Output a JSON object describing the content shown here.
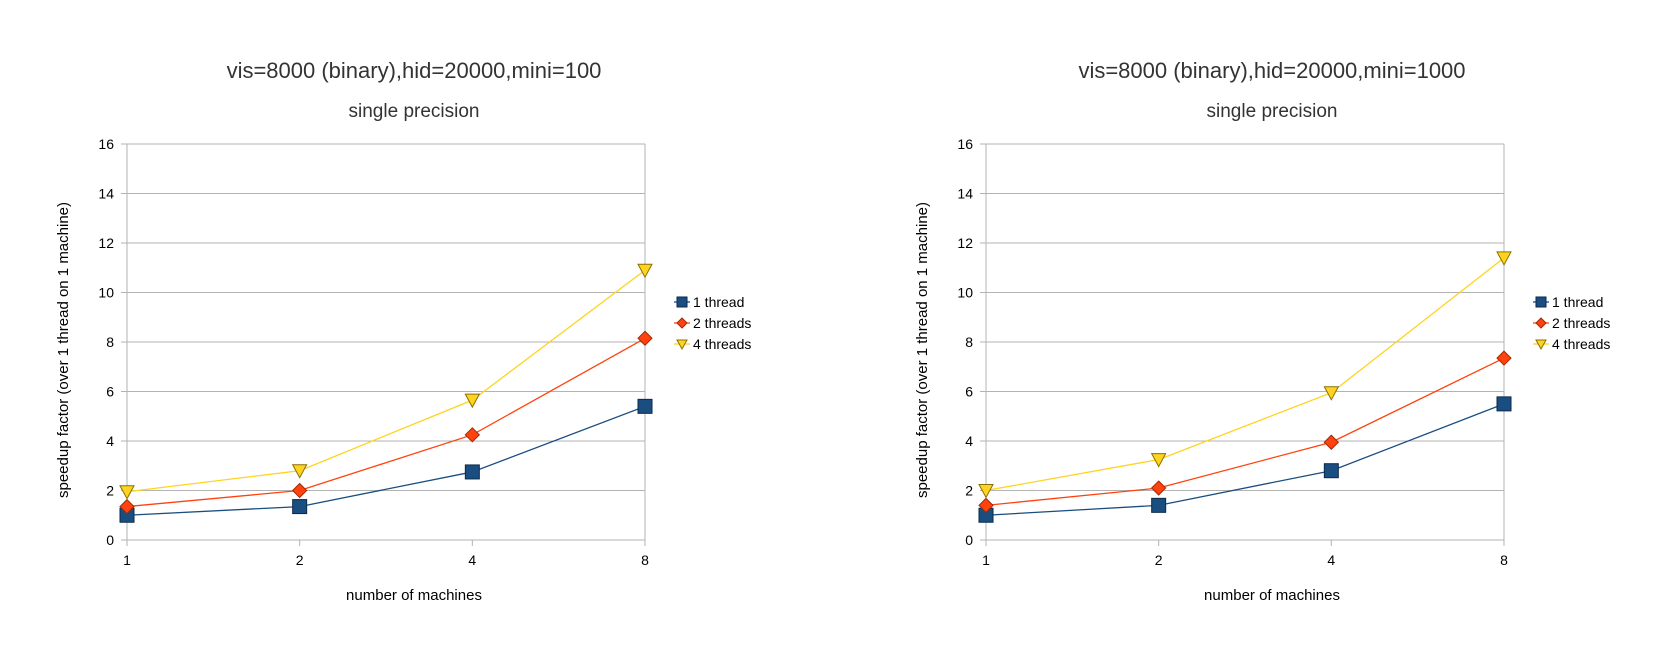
{
  "chart_data": [
    {
      "type": "line",
      "title": "vis=8000 (binary),hid=20000,mini=100",
      "subtitle": "single precision",
      "xlabel": "number of machines",
      "ylabel": "speedup factor (over 1 thread on 1 machine)",
      "categories": [
        "1",
        "2",
        "4",
        "8"
      ],
      "ylim": [
        0,
        16
      ],
      "yticks": [
        0,
        2,
        4,
        6,
        8,
        10,
        12,
        14,
        16
      ],
      "grid": true,
      "legend_position": "right",
      "series": [
        {
          "name": "1 thread",
          "values": [
            1.0,
            1.35,
            2.75,
            5.4
          ],
          "color": "#1a4e80",
          "marker": "square"
        },
        {
          "name": "2 threads",
          "values": [
            1.35,
            2.0,
            4.25,
            8.15
          ],
          "color": "#ff420e",
          "marker": "diamond"
        },
        {
          "name": "4 threads",
          "values": [
            1.95,
            2.8,
            5.65,
            10.9
          ],
          "color": "#ffd320",
          "marker": "triangle-down"
        }
      ]
    },
    {
      "type": "line",
      "title": "vis=8000 (binary),hid=20000,mini=1000",
      "subtitle": "single precision",
      "xlabel": "number of machines",
      "ylabel": "speedup factor (over 1 thread on 1 machine)",
      "categories": [
        "1",
        "2",
        "4",
        "8"
      ],
      "ylim": [
        0,
        16
      ],
      "yticks": [
        0,
        2,
        4,
        6,
        8,
        10,
        12,
        14,
        16
      ],
      "grid": true,
      "legend_position": "right",
      "series": [
        {
          "name": "1 thread",
          "values": [
            1.0,
            1.4,
            2.8,
            5.5
          ],
          "color": "#1a4e80",
          "marker": "square"
        },
        {
          "name": "2 threads",
          "values": [
            1.4,
            2.1,
            3.95,
            7.35
          ],
          "color": "#ff420e",
          "marker": "diamond"
        },
        {
          "name": "4 threads",
          "values": [
            2.0,
            3.25,
            5.95,
            11.4
          ],
          "color": "#ffd320",
          "marker": "triangle-down"
        }
      ]
    }
  ]
}
